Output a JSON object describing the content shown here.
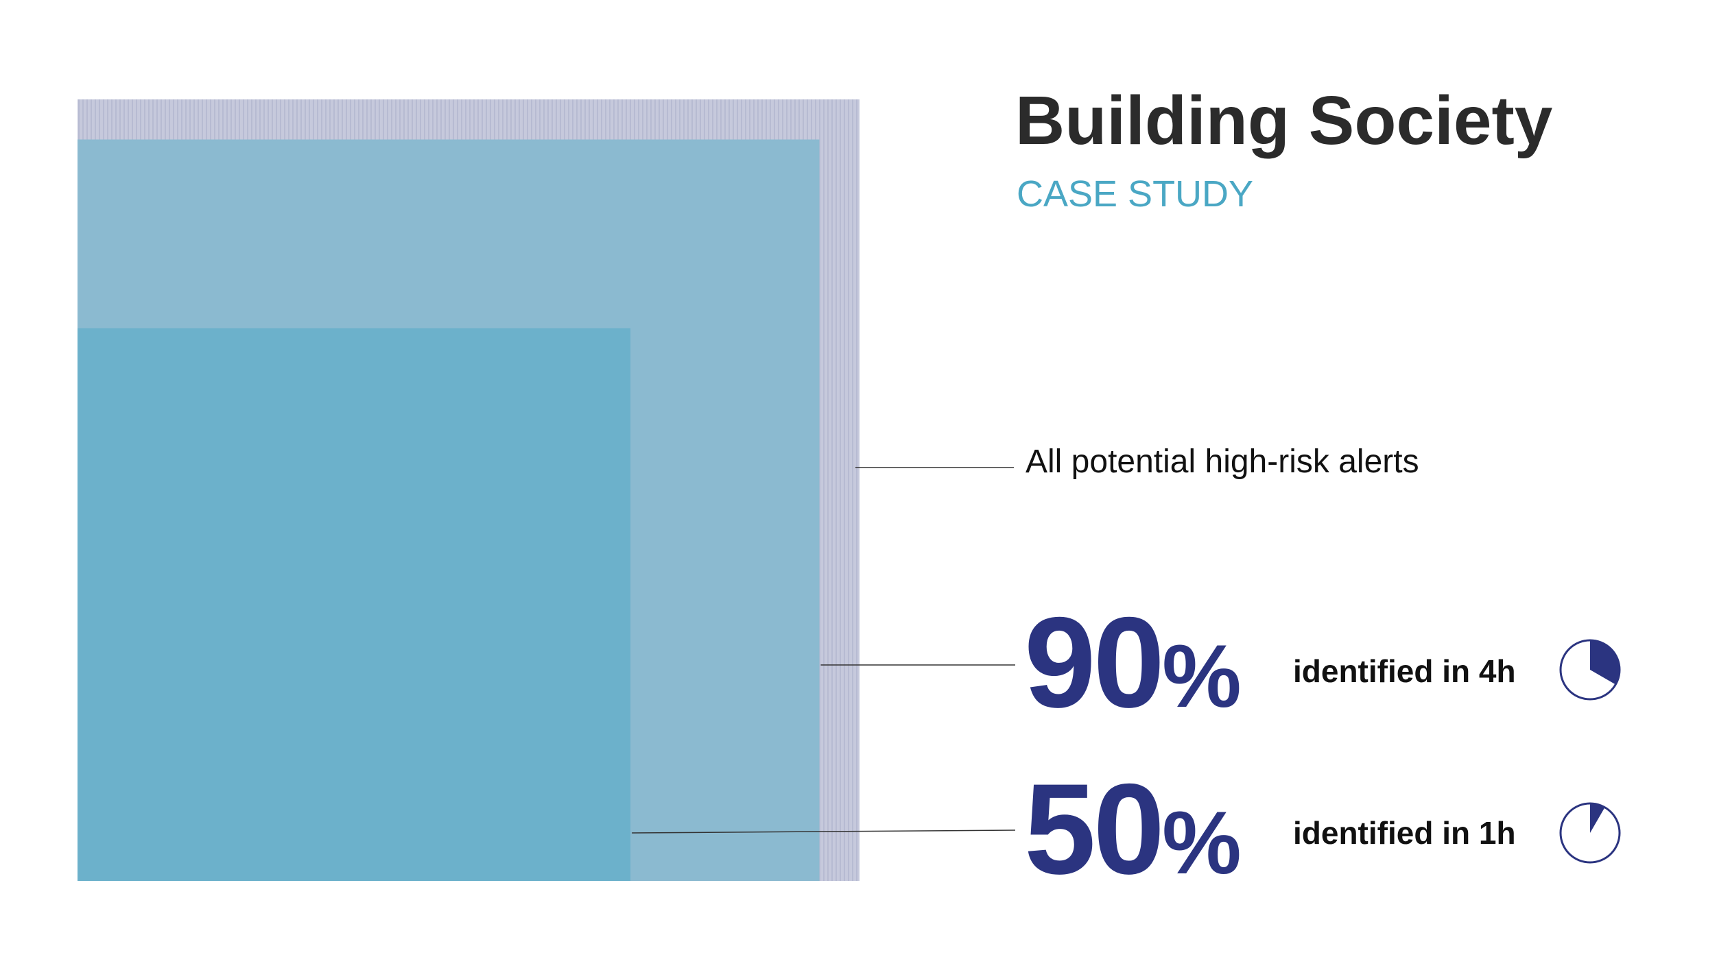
{
  "header": {
    "title": "Building Society",
    "subtitle": "CASE STUDY"
  },
  "colors": {
    "outer": "#c6c9dc",
    "middle": "#8bbad0",
    "inner": "#6cb1cb",
    "accent": "#2b3480",
    "subtitle": "#4aa7c4"
  },
  "chart_data": {
    "type": "nested-area",
    "title": "Building Society",
    "subtitle": "CASE STUDY",
    "total_label": "All potential high-risk alerts",
    "total_percent": 100,
    "segments": [
      {
        "percent": 90,
        "value_label": "90",
        "unit": "%",
        "description": "identified in 4h",
        "clock_hours": 4
      },
      {
        "percent": 50,
        "value_label": "50",
        "unit": "%",
        "description": "identified in 1h",
        "clock_hours": 1
      }
    ]
  }
}
